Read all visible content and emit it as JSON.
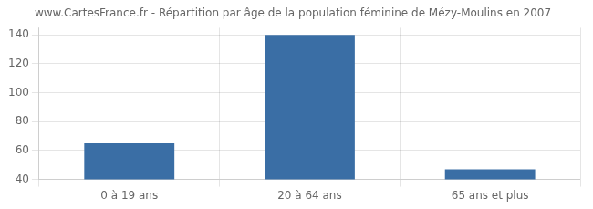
{
  "chart_data": {
    "type": "bar",
    "title": "www.CartesFrance.fr - Répartition par âge de la population féminine de Mézy-Moulins en 2007",
    "categories": [
      "0 à 19 ans",
      "20 à 64 ans",
      "65 ans et plus"
    ],
    "values": [
      65,
      140,
      47
    ],
    "color": "#3a6ea5",
    "ylim": [
      40,
      145
    ],
    "yticks": [
      40,
      60,
      80,
      100,
      120,
      140
    ],
    "grid": true
  }
}
